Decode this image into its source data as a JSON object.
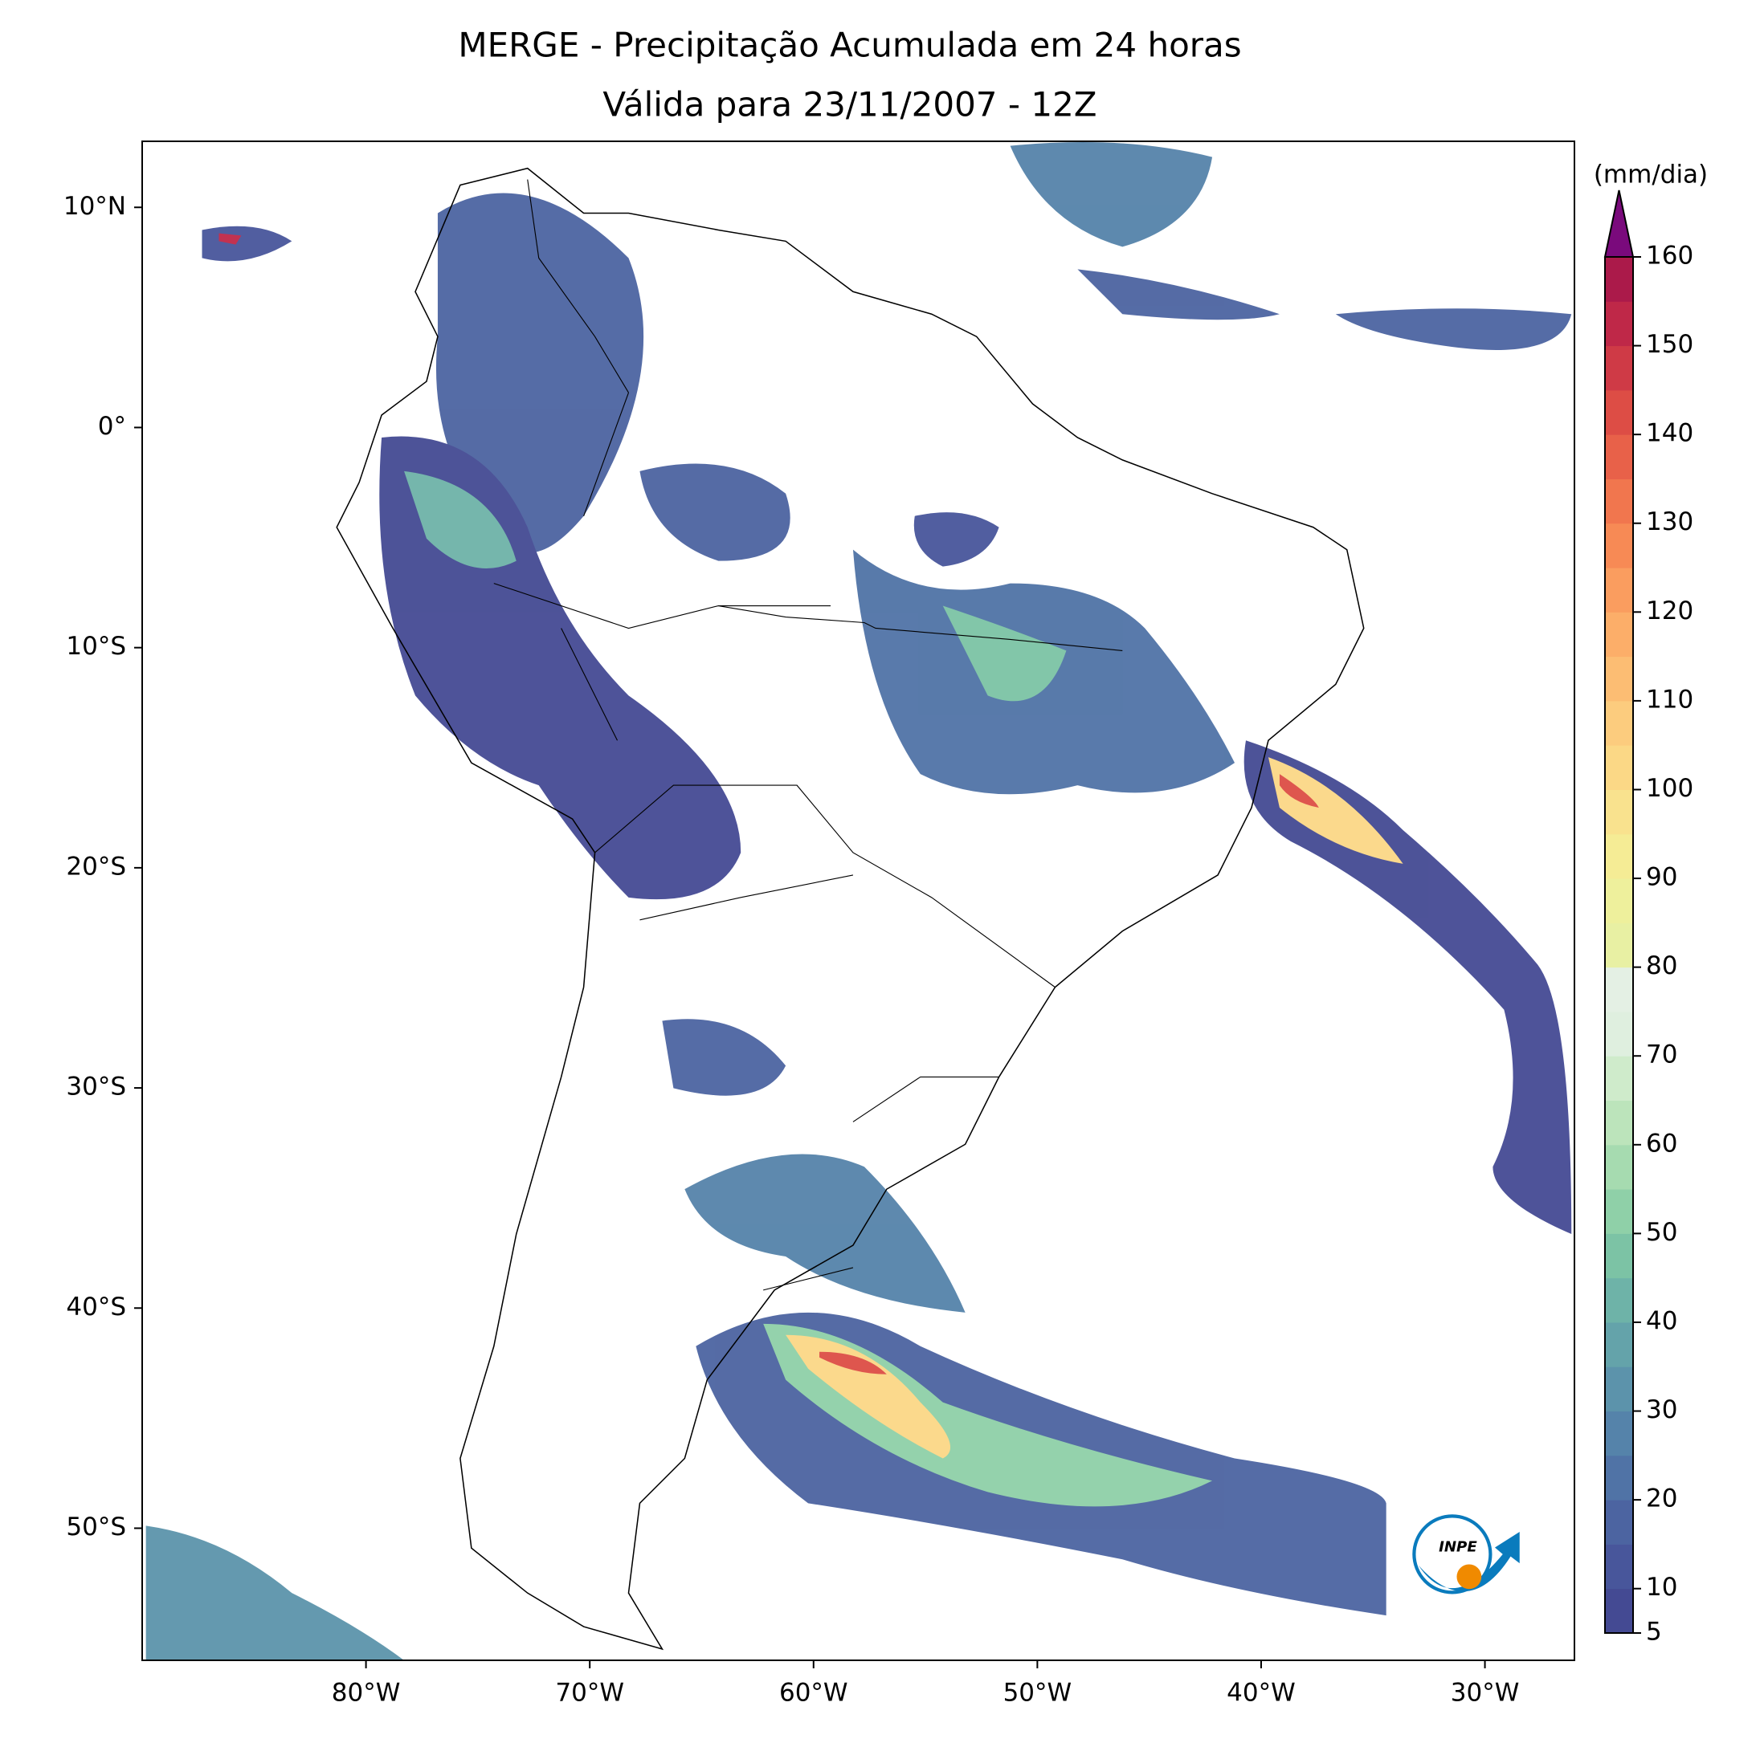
{
  "chart_data": {
    "type": "map",
    "title": "MERGE - Precipitação Acumulada em 24 horas",
    "subtitle": "Válida para 23/11/2007 - 12Z",
    "xlim": [
      -90,
      -26
    ],
    "ylim": [
      -56,
      13
    ],
    "xticks": [
      {
        "value": -80,
        "label": "80°W"
      },
      {
        "value": -70,
        "label": "70°W"
      },
      {
        "value": -60,
        "label": "60°W"
      },
      {
        "value": -50,
        "label": "50°W"
      },
      {
        "value": -40,
        "label": "40°W"
      },
      {
        "value": -30,
        "label": "30°W"
      }
    ],
    "yticks": [
      {
        "value": 10,
        "label": "10°N"
      },
      {
        "value": 0,
        "label": "0°"
      },
      {
        "value": -10,
        "label": "10°S"
      },
      {
        "value": -20,
        "label": "20°S"
      },
      {
        "value": -30,
        "label": "30°S"
      },
      {
        "value": -40,
        "label": "40°S"
      },
      {
        "value": -50,
        "label": "50°S"
      }
    ],
    "colorbar": {
      "label": "(mm/dia)",
      "lim": [
        5,
        160
      ],
      "ticks": [
        5,
        10,
        20,
        30,
        40,
        50,
        60,
        70,
        80,
        90,
        100,
        110,
        120,
        130,
        140,
        150,
        160
      ],
      "colors": [
        "#444a93",
        "#48569b",
        "#4c64a1",
        "#5073a6",
        "#5583aa",
        "#5c93ab",
        "#64a3aa",
        "#6eb3a8",
        "#7cc3a5",
        "#8fd0a8",
        "#a6dbb0",
        "#bce4bb",
        "#cfebcb",
        "#dfefdf",
        "#e4f0e4",
        "#e8f0a3",
        "#eef09c",
        "#f5ec95",
        "#f9e28e",
        "#fbd886",
        "#fccc7e",
        "#fcbd73",
        "#fcae69",
        "#fa9d5f",
        "#f78a55",
        "#f1764e",
        "#e86149",
        "#dd4d45",
        "#cf3a46",
        "#bf2848",
        "#ab1a4a"
      ],
      "extend_color": "#7a0a7c"
    },
    "logo": "INPE"
  }
}
